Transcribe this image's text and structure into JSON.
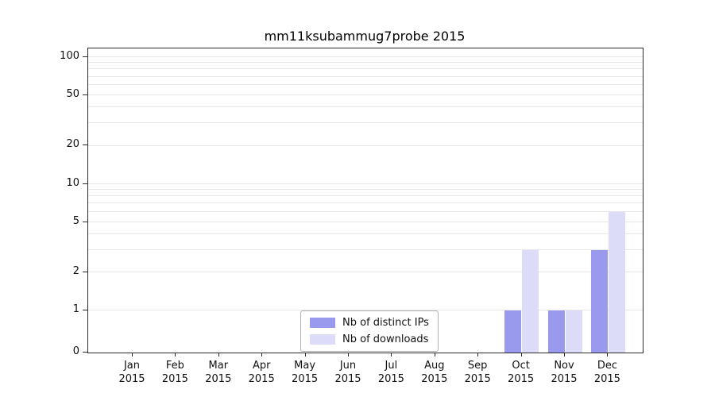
{
  "chart_data": {
    "type": "bar",
    "title": "mm11ksubammug7probe 2015",
    "categories": [
      "Jan",
      "Feb",
      "Mar",
      "Apr",
      "May",
      "Jun",
      "Jul",
      "Aug",
      "Sep",
      "Oct",
      "Nov",
      "Dec"
    ],
    "year_label": "2015",
    "series": [
      {
        "name": "Nb of distinct IPs",
        "color": "#9999ee",
        "values": [
          0,
          0,
          0,
          0,
          0,
          0,
          0,
          0,
          0,
          1,
          1,
          3
        ]
      },
      {
        "name": "Nb of downloads",
        "color": "#dcdcf8",
        "values": [
          0,
          0,
          0,
          0,
          0,
          0,
          0,
          0,
          0,
          3,
          1,
          6
        ]
      }
    ],
    "yticks": [
      0,
      1,
      2,
      5,
      10,
      20,
      50,
      100
    ],
    "yscale": "symlog",
    "ylim": [
      0,
      100
    ],
    "xlabel": "",
    "ylabel": "",
    "grid": "on",
    "legend_position": "lower center"
  }
}
